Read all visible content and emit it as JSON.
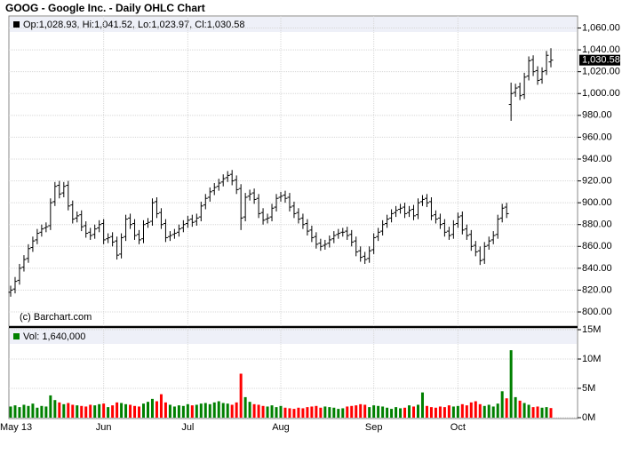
{
  "chart_data": {
    "type": "ohlc",
    "title": "GOOG - Google Inc. - Daily OHLC Chart",
    "source": "(c) Barchart.com",
    "ohlc_label": "Op:1,028.93, Hi:1,041.52, Lo:1,023.97, Cl:1,030.58",
    "close_label": "1,030.58",
    "color": "#000000",
    "grid": true,
    "categories": [
      "May 13",
      null,
      null,
      null,
      null,
      null,
      null,
      null,
      null,
      null,
      null,
      null,
      null,
      null,
      null,
      null,
      null,
      null,
      null,
      null,
      null,
      "Jun",
      null,
      null,
      null,
      null,
      null,
      null,
      null,
      null,
      null,
      null,
      null,
      null,
      null,
      null,
      null,
      null,
      null,
      null,
      "Jul",
      null,
      null,
      null,
      null,
      null,
      null,
      null,
      null,
      null,
      null,
      null,
      null,
      null,
      null,
      null,
      null,
      null,
      null,
      null,
      null,
      "Aug",
      null,
      null,
      null,
      null,
      null,
      null,
      null,
      null,
      null,
      null,
      null,
      null,
      null,
      null,
      null,
      null,
      null,
      null,
      null,
      null,
      "Sep",
      null,
      null,
      null,
      null,
      null,
      null,
      null,
      null,
      null,
      null,
      null,
      null,
      null,
      null,
      null,
      null,
      null,
      null,
      "Oct",
      null,
      null,
      null,
      null,
      null,
      null,
      null,
      null,
      null,
      null,
      null,
      null,
      null,
      null,
      null,
      null,
      null,
      null,
      null,
      null,
      null
    ],
    "open": [
      818,
      821,
      829,
      841,
      849,
      859,
      866,
      873,
      877,
      879,
      901,
      916,
      909,
      916,
      898,
      886,
      889,
      879,
      873,
      871,
      877,
      881,
      867,
      869,
      865,
      853,
      869,
      886,
      881,
      871,
      867,
      881,
      883,
      901,
      891,
      881,
      869,
      871,
      873,
      877,
      881,
      885,
      883,
      887,
      898,
      905,
      911,
      915,
      919,
      923,
      926,
      921,
      913,
      887,
      906,
      909,
      904,
      891,
      885,
      887,
      896,
      905,
      907,
      905,
      897,
      891,
      886,
      881,
      875,
      869,
      863,
      861,
      863,
      867,
      871,
      873,
      874,
      871,
      865,
      856,
      851,
      849,
      857,
      869,
      874,
      881,
      886,
      891,
      894,
      896,
      891,
      894,
      889,
      901,
      904,
      901,
      889,
      886,
      881,
      874,
      871,
      881,
      888,
      876,
      871,
      861,
      856,
      848,
      861,
      866,
      871,
      886,
      896,
      990,
      1001,
      1006,
      999,
      1016,
      1031,
      1021,
      1013,
      1021,
      1028.93
    ],
    "high": [
      824,
      832,
      844,
      852,
      862,
      869,
      876,
      880,
      882,
      904,
      919,
      920,
      919,
      920,
      902,
      892,
      893,
      883,
      877,
      880,
      884,
      885,
      872,
      873,
      869,
      872,
      889,
      890,
      885,
      875,
      884,
      886,
      904,
      905,
      895,
      885,
      874,
      876,
      880,
      884,
      888,
      889,
      890,
      901,
      908,
      914,
      918,
      922,
      926,
      929,
      930,
      925,
      917,
      909,
      912,
      913,
      908,
      895,
      890,
      899,
      908,
      910,
      911,
      909,
      901,
      895,
      890,
      885,
      879,
      873,
      867,
      866,
      870,
      874,
      876,
      877,
      878,
      875,
      869,
      860,
      855,
      860,
      872,
      877,
      884,
      889,
      894,
      897,
      899,
      900,
      897,
      898,
      904,
      907,
      908,
      905,
      893,
      890,
      885,
      878,
      884,
      891,
      892,
      880,
      875,
      865,
      860,
      864,
      869,
      874,
      889,
      899,
      900,
      1010,
      1009,
      1010,
      1019,
      1034,
      1035,
      1025,
      1024,
      1039,
      1041.52
    ],
    "low": [
      814,
      817,
      825,
      837,
      845,
      855,
      862,
      869,
      873,
      875,
      897,
      904,
      905,
      893,
      881,
      882,
      874,
      868,
      866,
      867,
      873,
      862,
      863,
      860,
      848,
      849,
      865,
      876,
      866,
      862,
      863,
      877,
      879,
      886,
      876,
      864,
      865,
      867,
      869,
      873,
      877,
      878,
      879,
      883,
      894,
      901,
      907,
      911,
      915,
      919,
      916,
      908,
      875,
      883,
      902,
      899,
      886,
      880,
      881,
      883,
      892,
      901,
      900,
      892,
      886,
      881,
      876,
      870,
      864,
      858,
      856,
      857,
      859,
      863,
      867,
      869,
      866,
      860,
      851,
      846,
      844,
      845,
      853,
      865,
      870,
      877,
      882,
      887,
      890,
      886,
      887,
      884,
      885,
      897,
      896,
      884,
      881,
      876,
      869,
      866,
      867,
      877,
      871,
      866,
      856,
      851,
      843,
      844,
      857,
      862,
      867,
      882,
      886,
      975,
      997,
      994,
      995,
      1012,
      1016,
      1008,
      1009,
      1017,
      1023.97
    ],
    "close": [
      820,
      828,
      840,
      848,
      858,
      865,
      872,
      876,
      878,
      900,
      915,
      908,
      915,
      897,
      885,
      888,
      878,
      872,
      870,
      876,
      880,
      866,
      868,
      864,
      852,
      868,
      885,
      880,
      870,
      866,
      880,
      882,
      900,
      890,
      880,
      868,
      870,
      872,
      876,
      880,
      884,
      882,
      886,
      897,
      904,
      910,
      914,
      918,
      922,
      925,
      920,
      912,
      886,
      905,
      908,
      903,
      890,
      884,
      886,
      895,
      904,
      906,
      904,
      896,
      890,
      885,
      880,
      874,
      868,
      862,
      860,
      862,
      866,
      870,
      872,
      873,
      870,
      864,
      855,
      850,
      848,
      856,
      868,
      873,
      880,
      885,
      890,
      893,
      895,
      890,
      893,
      888,
      900,
      903,
      900,
      888,
      885,
      880,
      873,
      870,
      880,
      887,
      875,
      870,
      860,
      855,
      847,
      860,
      865,
      870,
      885,
      895,
      890,
      1000,
      1005,
      998,
      1015,
      1030,
      1020,
      1012,
      1020,
      1035,
      1030.58
    ],
    "ylim": [
      787,
      1071
    ],
    "yticks": [
      {
        "value": 800,
        "label": "800.00"
      },
      {
        "value": 820,
        "label": "820.00"
      },
      {
        "value": 840,
        "label": "840.00"
      },
      {
        "value": 860,
        "label": "860.00"
      },
      {
        "value": 880,
        "label": "880.00"
      },
      {
        "value": 900,
        "label": "900.00"
      },
      {
        "value": 920,
        "label": "920.00"
      },
      {
        "value": 940,
        "label": "940.00"
      },
      {
        "value": 960,
        "label": "960.00"
      },
      {
        "value": 980,
        "label": "980.00"
      },
      {
        "value": 1000,
        "label": "1,000.00"
      },
      {
        "value": 1020,
        "label": "1,020.00"
      },
      {
        "value": 1040,
        "label": "1,040.00"
      },
      {
        "value": 1060,
        "label": "1,060.00"
      }
    ],
    "volume": {
      "label": "Vol: 1,640,000",
      "up_color": "#008000",
      "down_color": "#ff0000",
      "values": [
        1900000,
        2100000,
        1800000,
        2200000,
        2000000,
        2400000,
        1700000,
        2000000,
        1900000,
        3800000,
        3000000,
        2600000,
        2300000,
        2500000,
        2200000,
        2100000,
        2000000,
        1900000,
        2200000,
        2100000,
        2300000,
        2400000,
        1800000,
        2100000,
        2600000,
        2500000,
        2300000,
        2200000,
        2000000,
        1900000,
        2400000,
        2700000,
        3200000,
        2800000,
        4000000,
        2600000,
        2200000,
        1900000,
        2100000,
        2000000,
        2300000,
        2100000,
        2200000,
        2400000,
        2500000,
        2300000,
        2600000,
        2800000,
        2500000,
        2400000,
        2200000,
        2600000,
        7500000,
        3500000,
        2700000,
        2300000,
        2200000,
        2000000,
        1900000,
        2100000,
        1800000,
        2000000,
        1700000,
        1600000,
        1500000,
        1700000,
        1600000,
        1800000,
        1900000,
        2000000,
        1700000,
        1900000,
        1800000,
        1700000,
        1500000,
        1600000,
        1900000,
        2000000,
        2100000,
        2300000,
        2200000,
        1800000,
        2100000,
        2000000,
        1900000,
        1700000,
        1500000,
        1800000,
        1600000,
        1700000,
        2100000,
        1900000,
        2200000,
        4300000,
        2000000,
        1800000,
        1700000,
        1900000,
        1800000,
        2100000,
        1900000,
        2000000,
        2300000,
        2100000,
        2600000,
        2800000,
        2300000,
        2000000,
        2200000,
        1900000,
        2400000,
        4500000,
        3300000,
        11500000,
        3500000,
        2900000,
        2500000,
        2200000,
        1800000,
        1900000,
        1700000,
        1800000,
        1640000
      ],
      "ylim": [
        0,
        15300000
      ],
      "yticks": [
        {
          "value": 0,
          "label": "0M"
        },
        {
          "value": 5000000,
          "label": "5M"
        },
        {
          "value": 10000000,
          "label": "10M"
        },
        {
          "value": 15000000,
          "label": "15M"
        }
      ]
    }
  }
}
